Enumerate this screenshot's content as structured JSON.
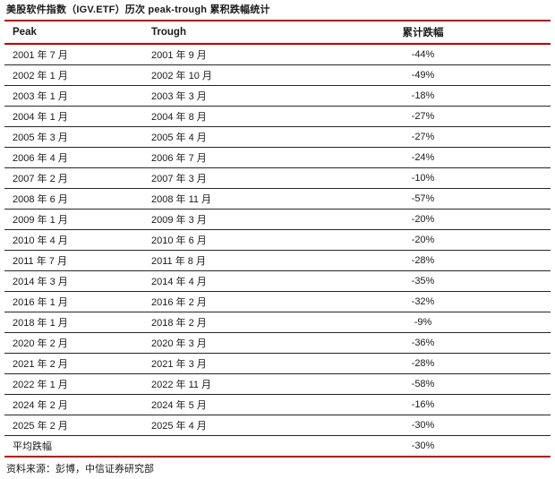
{
  "figure": {
    "title": "美股软件指数（IGV.ETF）历次 peak-trough 累积跌幅统计",
    "source_note": "资料来源：彭博，中信证券研究部"
  },
  "table": {
    "columns": [
      "Peak",
      "Trough",
      "累计跌幅"
    ],
    "rows": [
      {
        "peak": "2001 年 7 月",
        "trough": "2001 年 9 月",
        "drawdown": "-44%"
      },
      {
        "peak": "2002 年 1 月",
        "trough": "2002 年 10 月",
        "drawdown": "-49%"
      },
      {
        "peak": "2003 年 1 月",
        "trough": "2003 年 3 月",
        "drawdown": "-18%"
      },
      {
        "peak": "2004 年 1 月",
        "trough": "2004 年 8 月",
        "drawdown": "-27%"
      },
      {
        "peak": "2005 年 3 月",
        "trough": "2005 年 4 月",
        "drawdown": "-27%"
      },
      {
        "peak": "2006 年 4 月",
        "trough": "2006 年 7 月",
        "drawdown": "-24%"
      },
      {
        "peak": "2007 年 2 月",
        "trough": "2007 年 3 月",
        "drawdown": "-10%"
      },
      {
        "peak": "2008 年 6 月",
        "trough": "2008 年 11 月",
        "drawdown": "-57%"
      },
      {
        "peak": "2009 年 1 月",
        "trough": "2009 年 3 月",
        "drawdown": "-20%"
      },
      {
        "peak": "2010 年 4 月",
        "trough": "2010 年 6 月",
        "drawdown": "-20%"
      },
      {
        "peak": "2011 年 7 月",
        "trough": "2011 年 8 月",
        "drawdown": "-28%"
      },
      {
        "peak": "2014 年 3 月",
        "trough": "2014 年 4 月",
        "drawdown": "-35%"
      },
      {
        "peak": "2016 年 1 月",
        "trough": "2016 年 2 月",
        "drawdown": "-32%"
      },
      {
        "peak": "2018 年 1 月",
        "trough": "2018 年 2 月",
        "drawdown": "-9%"
      },
      {
        "peak": "2020 年 2 月",
        "trough": "2020 年 3 月",
        "drawdown": "-36%"
      },
      {
        "peak": "2021 年 2 月",
        "trough": "2021 年 3 月",
        "drawdown": "-28%"
      },
      {
        "peak": "2022 年 1 月",
        "trough": "2022 年 11 月",
        "drawdown": "-58%"
      },
      {
        "peak": "2024 年 2 月",
        "trough": "2024 年 5 月",
        "drawdown": "-16%"
      },
      {
        "peak": "2025 年 2 月",
        "trough": "2025 年 4 月",
        "drawdown": "-30%"
      },
      {
        "peak": "平均跌幅",
        "trough": "",
        "drawdown": "-30%",
        "summary": true
      }
    ]
  },
  "colors": {
    "accent_red": "#c00000",
    "row_line": "#262626",
    "text": "#1a1a1a"
  }
}
